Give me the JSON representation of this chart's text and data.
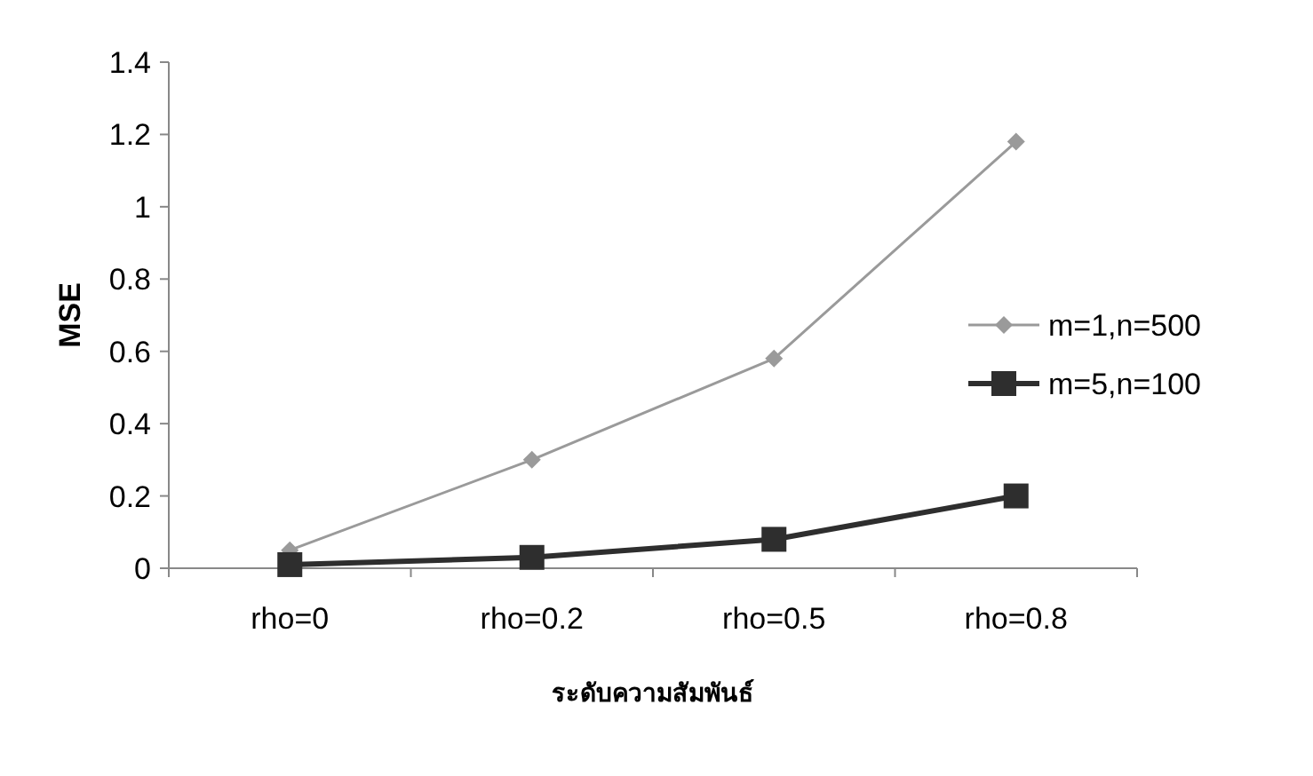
{
  "chart_data": {
    "type": "line",
    "xlabel": "ระดับความสัมพันธ์",
    "ylabel": "MSE",
    "categories": [
      "rho=0",
      "rho=0.2",
      "rho=0.5",
      "rho=0.8"
    ],
    "ylim": [
      0,
      1.4
    ],
    "yticks": [
      0,
      0.2,
      0.4,
      0.6,
      0.8,
      1,
      1.2,
      1.4
    ],
    "grid": false,
    "legend": "right",
    "line_style": "solid",
    "series": [
      {
        "name": "m=1,n=500",
        "color": "#9a9a9a",
        "marker": "diamond",
        "values": [
          0.05,
          0.3,
          0.58,
          1.18
        ]
      },
      {
        "name": "m=5,n=100",
        "color": "#2e2e2e",
        "marker": "square",
        "values": [
          0.01,
          0.03,
          0.08,
          0.2
        ]
      }
    ]
  }
}
